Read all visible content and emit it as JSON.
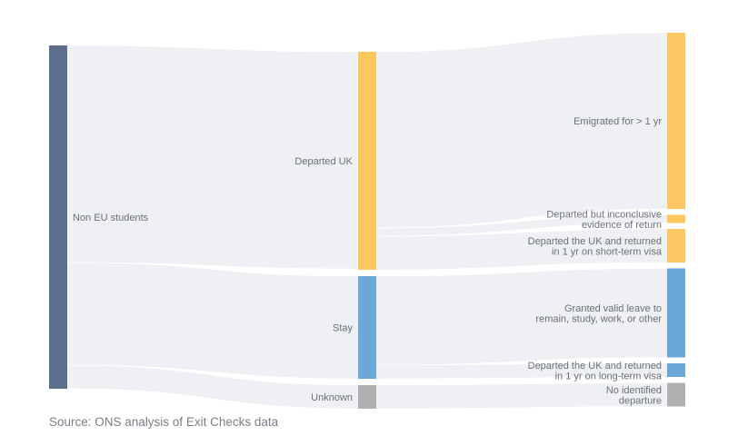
{
  "chart_data": {
    "type": "sankey",
    "title": "",
    "source_note": "Source: ONS analysis of Exit Checks data",
    "link_color": "#eef0f4",
    "nodes": [
      {
        "id": "non_eu",
        "label": "Non EU students",
        "column": 0,
        "color": "#5b6e8c",
        "label_side": "right"
      },
      {
        "id": "departed",
        "label": "Departed UK",
        "column": 1,
        "color": "#fcc75f",
        "label_side": "left"
      },
      {
        "id": "stay",
        "label": "Stay",
        "column": 1,
        "color": "#6aa8d8",
        "label_side": "left"
      },
      {
        "id": "unknown",
        "label": "Unknown",
        "column": 1,
        "color": "#b0b0b0",
        "label_side": "left"
      },
      {
        "id": "emigrated",
        "label": [
          "Emigrated for > 1 yr"
        ],
        "column": 2,
        "color": "#fcc75f",
        "label_side": "left"
      },
      {
        "id": "inconclusive",
        "label": [
          "Departed but inconclusive",
          "evidence of return"
        ],
        "column": 2,
        "color": "#fcc75f",
        "label_side": "left"
      },
      {
        "id": "short_term",
        "label": [
          "Departed the UK and returned",
          "in 1 yr on short-term visa"
        ],
        "column": 2,
        "color": "#fcc75f",
        "label_side": "left"
      },
      {
        "id": "granted",
        "label": [
          "Granted valid leave to",
          "remain, study, work, or other"
        ],
        "column": 2,
        "color": "#6aa8d8",
        "label_side": "left"
      },
      {
        "id": "long_term",
        "label": [
          "Departed the UK and returned",
          "in 1 yr on long-term visa"
        ],
        "column": 2,
        "color": "#6aa8d8",
        "label_side": "left"
      },
      {
        "id": "no_departure",
        "label": [
          "No identified",
          "departure"
        ],
        "column": 2,
        "color": "#b0b0b0",
        "label_side": "left"
      }
    ],
    "links": [
      {
        "source": "non_eu",
        "target": "departed",
        "value": 239
      },
      {
        "source": "non_eu",
        "target": "stay",
        "value": 113
      },
      {
        "source": "non_eu",
        "target": "unknown",
        "value": 26
      },
      {
        "source": "departed",
        "target": "emigrated",
        "value": 194
      },
      {
        "source": "departed",
        "target": "inconclusive",
        "value": 9
      },
      {
        "source": "departed",
        "target": "short_term",
        "value": 37
      },
      {
        "source": "stay",
        "target": "granted",
        "value": 98
      },
      {
        "source": "stay",
        "target": "long_term",
        "value": 15
      },
      {
        "source": "unknown",
        "target": "no_departure",
        "value": 26
      }
    ]
  }
}
